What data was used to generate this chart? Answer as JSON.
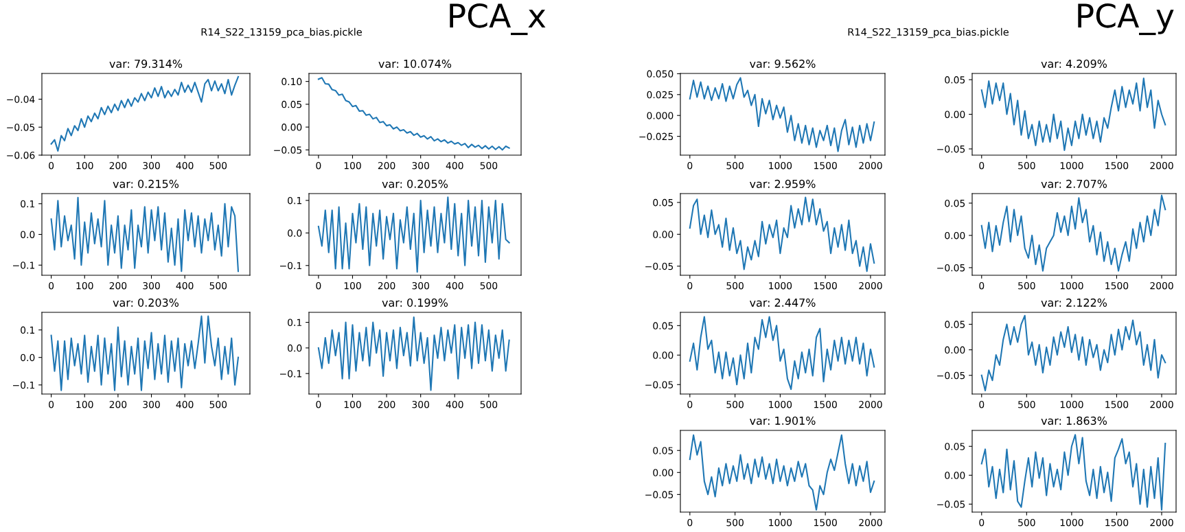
{
  "chart_data": [
    {
      "type": "line",
      "title": "var: 79.314%",
      "annotations": [
        "R14_S22_13159_pca_bias.pickle",
        "PCA_x"
      ],
      "xlim": [
        -28,
        595
      ],
      "ylim": [
        -0.06,
        -0.0308
      ],
      "xticks": [
        0,
        100,
        200,
        300,
        400,
        500
      ],
      "yticks": [
        {
          "value": -0.06,
          "label": "−0.06"
        },
        {
          "value": -0.05,
          "label": "−0.05"
        },
        {
          "value": -0.04,
          "label": "−0.04"
        }
      ],
      "x": [
        0,
        10,
        20,
        30,
        40,
        50,
        60,
        70,
        80,
        90,
        100,
        110,
        120,
        130,
        140,
        150,
        160,
        170,
        180,
        190,
        200,
        210,
        220,
        230,
        240,
        250,
        260,
        270,
        280,
        290,
        300,
        310,
        320,
        330,
        340,
        350,
        360,
        370,
        380,
        390,
        400,
        410,
        420,
        430,
        440,
        450,
        460,
        470,
        480,
        490,
        500,
        510,
        520,
        530,
        540,
        550,
        560
      ],
      "series": [
        {
          "color": "#1f77b4",
          "values": [
            -0.056,
            -0.0545,
            -0.0585,
            -0.053,
            -0.0548,
            -0.0505,
            -0.053,
            -0.0495,
            -0.0512,
            -0.047,
            -0.05,
            -0.046,
            -0.048,
            -0.045,
            -0.047,
            -0.043,
            -0.0455,
            -0.0425,
            -0.0448,
            -0.0418,
            -0.044,
            -0.0405,
            -0.043,
            -0.04,
            -0.0425,
            -0.0395,
            -0.041,
            -0.038,
            -0.0405,
            -0.0375,
            -0.0395,
            -0.036,
            -0.039,
            -0.0355,
            -0.0395,
            -0.037,
            -0.039,
            -0.0365,
            -0.0385,
            -0.034,
            -0.0375,
            -0.035,
            -0.0375,
            -0.034,
            -0.0375,
            -0.041,
            -0.0345,
            -0.033,
            -0.037,
            -0.0335,
            -0.037,
            -0.0345,
            -0.038,
            -0.033,
            -0.0385,
            -0.035,
            -0.032
          ]
        }
      ]
    },
    {
      "type": "line",
      "title": "var: 10.074%",
      "xlim": [
        -28,
        595
      ],
      "ylim": [
        -0.0615,
        0.1175
      ],
      "xticks": [
        0,
        100,
        200,
        300,
        400,
        500
      ],
      "yticks": [
        {
          "value": -0.05,
          "label": "−0.05"
        },
        {
          "value": 0,
          "label": "0.00"
        },
        {
          "value": 0.05,
          "label": "0.05"
        },
        {
          "value": 0.1,
          "label": "0.10"
        }
      ],
      "x": [
        0,
        10,
        20,
        30,
        40,
        50,
        60,
        70,
        80,
        90,
        100,
        110,
        120,
        130,
        140,
        150,
        160,
        170,
        180,
        190,
        200,
        210,
        220,
        230,
        240,
        250,
        260,
        270,
        280,
        290,
        300,
        310,
        320,
        330,
        340,
        350,
        360,
        370,
        380,
        390,
        400,
        410,
        420,
        430,
        440,
        450,
        460,
        470,
        480,
        490,
        500,
        510,
        520,
        530,
        540,
        550,
        560
      ],
      "series": [
        {
          "color": "#1f77b4",
          "values": [
            0.105,
            0.108,
            0.095,
            0.094,
            0.082,
            0.08,
            0.07,
            0.072,
            0.058,
            0.055,
            0.045,
            0.047,
            0.035,
            0.036,
            0.026,
            0.028,
            0.018,
            0.021,
            0.01,
            0.012,
            0.003,
            0.005,
            -0.004,
            0.0,
            -0.008,
            -0.006,
            -0.013,
            -0.01,
            -0.018,
            -0.014,
            -0.022,
            -0.019,
            -0.026,
            -0.021,
            -0.03,
            -0.026,
            -0.032,
            -0.028,
            -0.035,
            -0.031,
            -0.037,
            -0.034,
            -0.04,
            -0.036,
            -0.045,
            -0.038,
            -0.044,
            -0.04,
            -0.047,
            -0.041,
            -0.048,
            -0.042,
            -0.049,
            -0.043,
            -0.05,
            -0.042,
            -0.046
          ]
        }
      ]
    },
    {
      "type": "line",
      "title": "var: 0.215%",
      "xlim": [
        -28,
        595
      ],
      "ylim": [
        -0.133,
        0.133
      ],
      "xticks": [
        0,
        100,
        200,
        300,
        400,
        500
      ],
      "yticks": [
        {
          "value": -0.1,
          "label": "−0.1"
        },
        {
          "value": 0,
          "label": "0.0"
        },
        {
          "value": 0.1,
          "label": "0.1"
        }
      ],
      "x": [
        0,
        10,
        20,
        30,
        40,
        50,
        60,
        70,
        80,
        90,
        100,
        110,
        120,
        130,
        140,
        150,
        160,
        170,
        180,
        190,
        200,
        210,
        220,
        230,
        240,
        250,
        260,
        270,
        280,
        290,
        300,
        310,
        320,
        330,
        340,
        350,
        360,
        370,
        380,
        390,
        400,
        410,
        420,
        430,
        440,
        450,
        460,
        470,
        480,
        490,
        500,
        510,
        520,
        530,
        540,
        550,
        560
      ],
      "series": [
        {
          "color": "#1f77b4",
          "values": [
            0.05,
            -0.05,
            0.11,
            -0.04,
            0.06,
            -0.02,
            0.03,
            -0.08,
            0.12,
            -0.1,
            0.04,
            -0.06,
            0.07,
            -0.03,
            0.05,
            -0.04,
            0.11,
            -0.1,
            0.03,
            -0.06,
            0.06,
            -0.11,
            0.03,
            -0.05,
            0.08,
            -0.11,
            0.03,
            -0.04,
            0.09,
            -0.06,
            0.08,
            -0.02,
            0.09,
            -0.05,
            0.07,
            -0.09,
            0.02,
            -0.1,
            0.05,
            -0.12,
            0.08,
            -0.02,
            0.07,
            -0.04,
            0.06,
            -0.06,
            0.05,
            -0.02,
            0.07,
            -0.05,
            0.03,
            -0.07,
            0.1,
            -0.04,
            0.09,
            0.06,
            -0.12
          ]
        }
      ]
    },
    {
      "type": "line",
      "title": "var: 0.205%",
      "xlim": [
        -28,
        595
      ],
      "ylim": [
        -0.13,
        0.121
      ],
      "xticks": [
        0,
        100,
        200,
        300,
        400,
        500
      ],
      "yticks": [
        {
          "value": -0.1,
          "label": "−0.1"
        },
        {
          "value": 0,
          "label": "0.0"
        },
        {
          "value": 0.1,
          "label": "0.1"
        }
      ],
      "x": [
        0,
        10,
        20,
        30,
        40,
        50,
        60,
        70,
        80,
        90,
        100,
        110,
        120,
        130,
        140,
        150,
        160,
        170,
        180,
        190,
        200,
        210,
        220,
        230,
        240,
        250,
        260,
        270,
        280,
        290,
        300,
        310,
        320,
        330,
        340,
        350,
        360,
        370,
        380,
        390,
        400,
        410,
        420,
        430,
        440,
        450,
        460,
        470,
        480,
        490,
        500,
        510,
        520,
        530,
        540,
        550,
        560
      ],
      "series": [
        {
          "color": "#1f77b4",
          "values": [
            0.02,
            -0.04,
            0.07,
            -0.06,
            0.07,
            -0.11,
            0.08,
            -0.11,
            0.03,
            -0.11,
            0.06,
            -0.03,
            0.09,
            -0.05,
            0.08,
            -0.1,
            0.06,
            -0.04,
            0.07,
            -0.08,
            0.05,
            -0.02,
            0.06,
            -0.11,
            0.04,
            -0.03,
            0.08,
            -0.05,
            0.06,
            -0.12,
            0.1,
            -0.06,
            0.07,
            -0.04,
            0.08,
            -0.06,
            0.06,
            -0.03,
            0.11,
            -0.05,
            0.09,
            -0.07,
            0.06,
            -0.1,
            0.1,
            -0.04,
            0.08,
            -0.07,
            0.1,
            -0.09,
            0.08,
            -0.03,
            0.1,
            -0.08,
            0.09,
            -0.02,
            -0.03
          ]
        }
      ]
    },
    {
      "type": "line",
      "title": "var: 0.203%",
      "xlim": [
        -28,
        595
      ],
      "ylim": [
        -0.133,
        0.164
      ],
      "xticks": [
        0,
        100,
        200,
        300,
        400,
        500
      ],
      "yticks": [
        {
          "value": -0.1,
          "label": "−0.1"
        },
        {
          "value": 0,
          "label": "0.0"
        },
        {
          "value": 0.1,
          "label": "0.1"
        }
      ],
      "x": [
        0,
        10,
        20,
        30,
        40,
        50,
        60,
        70,
        80,
        90,
        100,
        110,
        120,
        130,
        140,
        150,
        160,
        170,
        180,
        190,
        200,
        210,
        220,
        230,
        240,
        250,
        260,
        270,
        280,
        290,
        300,
        310,
        320,
        330,
        340,
        350,
        360,
        370,
        380,
        390,
        400,
        410,
        420,
        430,
        440,
        450,
        460,
        470,
        480,
        490,
        500,
        510,
        520,
        530,
        540,
        550,
        560
      ],
      "series": [
        {
          "color": "#1f77b4",
          "values": [
            0.08,
            -0.05,
            0.06,
            -0.12,
            0.06,
            -0.08,
            0.07,
            -0.03,
            0.05,
            -0.06,
            0.08,
            -0.09,
            0.04,
            -0.05,
            0.08,
            -0.1,
            0.07,
            -0.06,
            0.05,
            -0.12,
            0.11,
            -0.07,
            0.06,
            -0.1,
            0.04,
            -0.06,
            0.07,
            -0.12,
            0.06,
            -0.04,
            0.09,
            -0.08,
            0.05,
            -0.06,
            0.08,
            -0.09,
            0.06,
            -0.05,
            0.07,
            -0.11,
            0.05,
            -0.03,
            0.06,
            -0.04,
            0.05,
            0.15,
            -0.02,
            0.15,
            0.04,
            -0.03,
            0.07,
            -0.08,
            0.04,
            -0.06,
            0.07,
            -0.1,
            0.0
          ]
        }
      ]
    },
    {
      "type": "line",
      "title": "var: 0.199%",
      "xlim": [
        -28,
        595
      ],
      "ylim": [
        -0.18,
        0.139
      ],
      "xticks": [
        0,
        100,
        200,
        300,
        400,
        500
      ],
      "yticks": [
        {
          "value": -0.1,
          "label": "−0.1"
        },
        {
          "value": 0,
          "label": "0.0"
        },
        {
          "value": 0.1,
          "label": "0.1"
        }
      ],
      "x": [
        0,
        10,
        20,
        30,
        40,
        50,
        60,
        70,
        80,
        90,
        100,
        110,
        120,
        130,
        140,
        150,
        160,
        170,
        180,
        190,
        200,
        210,
        220,
        230,
        240,
        250,
        260,
        270,
        280,
        290,
        300,
        310,
        320,
        330,
        340,
        350,
        360,
        370,
        380,
        390,
        400,
        410,
        420,
        430,
        440,
        450,
        460,
        470,
        480,
        490,
        500,
        510,
        520,
        530,
        540,
        550,
        560
      ],
      "series": [
        {
          "color": "#1f77b4",
          "values": [
            0.0,
            -0.08,
            0.04,
            -0.06,
            0.07,
            -0.03,
            0.06,
            -0.12,
            0.1,
            -0.12,
            0.09,
            -0.09,
            0.06,
            -0.05,
            0.08,
            -0.07,
            0.1,
            -0.02,
            0.07,
            -0.11,
            0.06,
            -0.05,
            0.07,
            -0.08,
            0.08,
            -0.03,
            0.06,
            -0.07,
            0.12,
            -0.05,
            0.06,
            -0.06,
            0.04,
            -0.165,
            0.05,
            -0.04,
            0.08,
            -0.05,
            0.07,
            -0.02,
            0.09,
            -0.12,
            0.08,
            -0.04,
            0.09,
            -0.08,
            0.1,
            -0.06,
            0.09,
            -0.05,
            0.07,
            -0.09,
            0.05,
            -0.04,
            0.07,
            -0.09,
            0.03
          ]
        }
      ]
    },
    {
      "type": "line",
      "title": "var: 9.562%",
      "annotations": [
        "R14_S22_13159_pca_bias.pickle",
        "PCA_y"
      ],
      "xlim": [
        -105,
        2160
      ],
      "ylim": [
        -0.0475,
        0.0503
      ],
      "xticks": [
        0,
        500,
        1000,
        1500,
        2000
      ],
      "yticks": [
        {
          "value": -0.025,
          "label": "−0.025"
        },
        {
          "value": 0,
          "label": "0.000"
        },
        {
          "value": 0.025,
          "label": "0.025"
        },
        {
          "value": 0.05,
          "label": "0.050"
        }
      ],
      "x": [
        0,
        40,
        80,
        120,
        160,
        200,
        240,
        280,
        320,
        360,
        400,
        440,
        480,
        520,
        560,
        600,
        640,
        680,
        720,
        760,
        800,
        840,
        880,
        920,
        960,
        1000,
        1040,
        1080,
        1120,
        1160,
        1200,
        1240,
        1280,
        1320,
        1360,
        1400,
        1440,
        1480,
        1520,
        1560,
        1600,
        1640,
        1680,
        1720,
        1760,
        1800,
        1840,
        1880,
        1920,
        1960,
        2000,
        2040
      ],
      "series": [
        {
          "color": "#1f77b4",
          "values": [
            0.02,
            0.042,
            0.022,
            0.04,
            0.02,
            0.035,
            0.018,
            0.033,
            0.02,
            0.038,
            0.017,
            0.035,
            0.02,
            0.037,
            0.045,
            0.022,
            0.03,
            0.012,
            0.025,
            -0.013,
            0.02,
            0.002,
            0.018,
            -0.005,
            0.012,
            -0.003,
            0.01,
            -0.02,
            0.0,
            -0.03,
            -0.01,
            -0.033,
            -0.012,
            -0.035,
            -0.015,
            -0.038,
            -0.018,
            -0.03,
            -0.012,
            -0.036,
            -0.015,
            -0.043,
            -0.018,
            -0.005,
            -0.035,
            -0.014,
            -0.038,
            -0.012,
            -0.033,
            -0.01,
            -0.03,
            -0.008
          ]
        }
      ]
    },
    {
      "type": "line",
      "title": "var: 4.209%",
      "xlim": [
        -105,
        2160
      ],
      "ylim": [
        -0.059,
        0.059
      ],
      "xticks": [
        0,
        500,
        1000,
        1500,
        2000
      ],
      "yticks": [
        {
          "value": -0.05,
          "label": "−0.05"
        },
        {
          "value": 0,
          "label": "0.00"
        },
        {
          "value": 0.05,
          "label": "0.05"
        }
      ],
      "x": [
        0,
        40,
        80,
        120,
        160,
        200,
        240,
        280,
        320,
        360,
        400,
        440,
        480,
        520,
        560,
        600,
        640,
        680,
        720,
        760,
        800,
        840,
        880,
        920,
        960,
        1000,
        1040,
        1080,
        1120,
        1160,
        1200,
        1240,
        1280,
        1320,
        1360,
        1400,
        1440,
        1480,
        1520,
        1560,
        1600,
        1640,
        1680,
        1720,
        1760,
        1800,
        1840,
        1880,
        1920,
        1960,
        2000,
        2040
      ],
      "series": [
        {
          "color": "#1f77b4",
          "values": [
            0.035,
            0.01,
            0.048,
            0.015,
            0.045,
            0.02,
            0.045,
            0.0,
            0.03,
            -0.015,
            0.02,
            -0.03,
            0.005,
            -0.035,
            -0.015,
            -0.045,
            -0.01,
            -0.04,
            -0.015,
            -0.04,
            0.0,
            -0.035,
            -0.01,
            -0.052,
            -0.02,
            -0.045,
            -0.01,
            -0.035,
            0.0,
            -0.03,
            -0.005,
            -0.035,
            -0.01,
            -0.04,
            -0.005,
            -0.02,
            0.01,
            0.035,
            0.005,
            0.04,
            0.01,
            0.035,
            0.015,
            0.045,
            0.005,
            0.052,
            0.01,
            0.035,
            -0.02,
            0.02,
            0.0,
            -0.015
          ]
        }
      ]
    },
    {
      "type": "line",
      "title": "var: 2.959%",
      "xlim": [
        -105,
        2160
      ],
      "ylim": [
        -0.0643,
        0.0639
      ],
      "xticks": [
        0,
        500,
        1000,
        1500,
        2000
      ],
      "yticks": [
        {
          "value": -0.05,
          "label": "−0.05"
        },
        {
          "value": 0,
          "label": "0.00"
        },
        {
          "value": 0.05,
          "label": "0.05"
        }
      ],
      "x": [
        0,
        40,
        80,
        120,
        160,
        200,
        240,
        280,
        320,
        360,
        400,
        440,
        480,
        520,
        560,
        600,
        640,
        680,
        720,
        760,
        800,
        840,
        880,
        920,
        960,
        1000,
        1040,
        1080,
        1120,
        1160,
        1200,
        1240,
        1280,
        1320,
        1360,
        1400,
        1440,
        1480,
        1520,
        1560,
        1600,
        1640,
        1680,
        1720,
        1760,
        1800,
        1840,
        1880,
        1920,
        1960,
        2000,
        2040
      ],
      "series": [
        {
          "color": "#1f77b4",
          "values": [
            0.01,
            0.045,
            0.055,
            0.0,
            0.03,
            -0.005,
            0.038,
            0.0,
            0.015,
            -0.02,
            0.025,
            -0.025,
            0.01,
            -0.03,
            -0.01,
            -0.055,
            -0.02,
            -0.04,
            -0.01,
            -0.035,
            0.02,
            -0.015,
            0.015,
            -0.005,
            0.022,
            -0.03,
            0.01,
            -0.005,
            0.045,
            0.01,
            0.04,
            0.015,
            0.058,
            0.02,
            0.055,
            0.015,
            0.04,
            0.005,
            0.02,
            -0.03,
            0.01,
            -0.02,
            0.015,
            -0.025,
            0.022,
            -0.03,
            -0.01,
            -0.05,
            -0.02,
            -0.058,
            -0.015,
            -0.045
          ]
        }
      ]
    },
    {
      "type": "line",
      "title": "var: 2.707%",
      "xlim": [
        -105,
        2160
      ],
      "ylim": [
        -0.0618,
        0.0648
      ],
      "xticks": [
        0,
        500,
        1000,
        1500,
        2000
      ],
      "yticks": [
        {
          "value": -0.05,
          "label": "−0.05"
        },
        {
          "value": 0,
          "label": "0.00"
        },
        {
          "value": 0.05,
          "label": "0.05"
        }
      ],
      "x": [
        0,
        40,
        80,
        120,
        160,
        200,
        240,
        280,
        320,
        360,
        400,
        440,
        480,
        520,
        560,
        600,
        640,
        680,
        720,
        760,
        800,
        840,
        880,
        920,
        960,
        1000,
        1040,
        1080,
        1120,
        1160,
        1200,
        1240,
        1280,
        1320,
        1360,
        1400,
        1440,
        1480,
        1520,
        1560,
        1600,
        1640,
        1680,
        1720,
        1760,
        1800,
        1840,
        1880,
        1920,
        1960,
        2000,
        2040
      ],
      "series": [
        {
          "color": "#1f77b4",
          "values": [
            0.015,
            -0.02,
            0.02,
            -0.025,
            0.015,
            -0.015,
            0.02,
            0.045,
            -0.01,
            0.04,
            0.0,
            0.03,
            -0.02,
            -0.035,
            0.0,
            -0.045,
            -0.015,
            -0.055,
            -0.02,
            -0.01,
            0.0,
            0.035,
            0.005,
            0.03,
            0.0,
            0.045,
            0.01,
            0.058,
            0.02,
            0.04,
            -0.01,
            0.015,
            -0.03,
            0.005,
            -0.04,
            -0.01,
            -0.045,
            -0.02,
            -0.055,
            -0.03,
            -0.01,
            -0.04,
            0.01,
            -0.02,
            0.02,
            -0.01,
            0.03,
            0.0,
            0.04,
            0.015,
            0.062,
            0.04
          ]
        }
      ]
    },
    {
      "type": "line",
      "title": "var: 2.447%",
      "xlim": [
        -105,
        2160
      ],
      "ylim": [
        -0.066,
        0.0725
      ],
      "xticks": [
        0,
        500,
        1000,
        1500,
        2000
      ],
      "yticks": [
        {
          "value": -0.05,
          "label": "−0.05"
        },
        {
          "value": 0,
          "label": "0.00"
        },
        {
          "value": 0.05,
          "label": "0.05"
        }
      ],
      "x": [
        0,
        40,
        80,
        120,
        160,
        200,
        240,
        280,
        320,
        360,
        400,
        440,
        480,
        520,
        560,
        600,
        640,
        680,
        720,
        760,
        800,
        840,
        880,
        920,
        960,
        1000,
        1040,
        1080,
        1120,
        1160,
        1200,
        1240,
        1280,
        1320,
        1360,
        1400,
        1440,
        1480,
        1520,
        1560,
        1600,
        1640,
        1680,
        1720,
        1760,
        1800,
        1840,
        1880,
        1920,
        1960,
        2000,
        2040
      ],
      "series": [
        {
          "color": "#1f77b4",
          "values": [
            -0.01,
            0.02,
            -0.025,
            0.03,
            0.065,
            0.01,
            0.025,
            -0.03,
            0.005,
            -0.04,
            0.005,
            -0.035,
            -0.005,
            -0.05,
            0.0,
            -0.04,
            0.02,
            -0.03,
            0.03,
            0.01,
            0.06,
            0.03,
            0.065,
            0.025,
            0.05,
            -0.01,
            0.01,
            -0.04,
            -0.058,
            -0.01,
            -0.04,
            0.005,
            -0.03,
            0.01,
            -0.035,
            0.03,
            0.045,
            -0.045,
            0.01,
            -0.025,
            0.025,
            -0.01,
            0.03,
            -0.015,
            0.025,
            -0.01,
            0.03,
            -0.015,
            0.02,
            -0.035,
            0.01,
            -0.02
          ]
        }
      ]
    },
    {
      "type": "line",
      "title": "var: 2.122%",
      "xlim": [
        -105,
        2160
      ],
      "ylim": [
        -0.0866,
        0.0734
      ],
      "xticks": [
        0,
        500,
        1000,
        1500,
        2000
      ],
      "yticks": [
        {
          "value": -0.05,
          "label": "−0.05"
        },
        {
          "value": 0,
          "label": "0.00"
        },
        {
          "value": 0.05,
          "label": "0.05"
        }
      ],
      "x": [
        0,
        40,
        80,
        120,
        160,
        200,
        240,
        280,
        320,
        360,
        400,
        440,
        480,
        520,
        560,
        600,
        640,
        680,
        720,
        760,
        800,
        840,
        880,
        920,
        960,
        1000,
        1040,
        1080,
        1120,
        1160,
        1200,
        1240,
        1280,
        1320,
        1360,
        1400,
        1440,
        1480,
        1520,
        1560,
        1600,
        1640,
        1680,
        1720,
        1760,
        1800,
        1840,
        1880,
        1920,
        1960,
        2000,
        2040
      ],
      "series": [
        {
          "color": "#1f77b4",
          "values": [
            -0.05,
            -0.08,
            -0.04,
            -0.06,
            -0.01,
            -0.03,
            0.02,
            0.05,
            0.01,
            0.045,
            0.015,
            0.05,
            0.067,
            -0.01,
            0.015,
            -0.03,
            0.01,
            -0.045,
            0.005,
            -0.03,
            0.025,
            -0.01,
            0.035,
            0.005,
            0.045,
            -0.005,
            0.03,
            -0.02,
            0.025,
            -0.03,
            0.02,
            -0.015,
            0.01,
            -0.04,
            0.0,
            -0.025,
            0.03,
            -0.01,
            0.04,
            0.0,
            0.045,
            0.02,
            0.058,
            0.01,
            0.035,
            -0.03,
            0.01,
            -0.04,
            0.02,
            -0.055,
            -0.01,
            -0.025
          ]
        }
      ]
    },
    {
      "type": "line",
      "title": "var: 1.901%",
      "xlim": [
        -105,
        2160
      ],
      "ylim": [
        -0.09,
        0.0956
      ],
      "xticks": [
        0,
        500,
        1000,
        1500,
        2000
      ],
      "yticks": [
        {
          "value": -0.05,
          "label": "−0.05"
        },
        {
          "value": 0,
          "label": "0.00"
        },
        {
          "value": 0.05,
          "label": "0.05"
        }
      ],
      "x": [
        0,
        40,
        80,
        120,
        160,
        200,
        240,
        280,
        320,
        360,
        400,
        440,
        480,
        520,
        560,
        600,
        640,
        680,
        720,
        760,
        800,
        840,
        880,
        920,
        960,
        1000,
        1040,
        1080,
        1120,
        1160,
        1200,
        1240,
        1280,
        1320,
        1360,
        1400,
        1440,
        1480,
        1520,
        1560,
        1600,
        1640,
        1680,
        1720,
        1760,
        1800,
        1840,
        1880,
        1920,
        1960,
        2000,
        2040
      ],
      "series": [
        {
          "color": "#1f77b4",
          "values": [
            0.03,
            0.085,
            0.04,
            0.07,
            -0.02,
            -0.05,
            -0.01,
            -0.055,
            0.01,
            -0.03,
            0.02,
            -0.025,
            0.015,
            -0.02,
            0.04,
            -0.015,
            0.02,
            -0.025,
            0.03,
            -0.01,
            0.035,
            -0.015,
            0.02,
            -0.025,
            0.03,
            -0.02,
            0.015,
            -0.03,
            0.01,
            -0.02,
            0.025,
            -0.01,
            0.02,
            -0.03,
            -0.04,
            -0.085,
            -0.03,
            -0.05,
            0.0,
            0.03,
            0.005,
            0.045,
            0.085,
            0.02,
            -0.025,
            0.02,
            -0.03,
            0.015,
            -0.02,
            0.025,
            -0.045,
            -0.02
          ]
        }
      ]
    },
    {
      "type": "line",
      "title": "var: 1.863%",
      "xlim": [
        -105,
        2160
      ],
      "ylim": [
        -0.0638,
        0.0776
      ],
      "xticks": [
        0,
        500,
        1000,
        1500,
        2000
      ],
      "yticks": [
        {
          "value": -0.05,
          "label": "−0.05"
        },
        {
          "value": 0,
          "label": "0.00"
        },
        {
          "value": 0.05,
          "label": "0.05"
        }
      ],
      "x": [
        0,
        40,
        80,
        120,
        160,
        200,
        240,
        280,
        320,
        360,
        400,
        440,
        480,
        520,
        560,
        600,
        640,
        680,
        720,
        760,
        800,
        840,
        880,
        920,
        960,
        1000,
        1040,
        1080,
        1120,
        1160,
        1200,
        1240,
        1280,
        1320,
        1360,
        1400,
        1440,
        1480,
        1520,
        1560,
        1600,
        1640,
        1680,
        1720,
        1760,
        1800,
        1840,
        1880,
        1920,
        1960,
        2000,
        2040
      ],
      "series": [
        {
          "color": "#1f77b4",
          "values": [
            0.02,
            0.045,
            -0.02,
            0.015,
            -0.04,
            0.01,
            -0.03,
            0.045,
            -0.025,
            0.025,
            -0.045,
            -0.055,
            -0.01,
            0.03,
            -0.02,
            0.04,
            -0.005,
            0.03,
            -0.035,
            0.02,
            -0.02,
            0.01,
            -0.025,
            0.04,
            0.0,
            0.05,
            0.07,
            0.02,
            0.065,
            -0.01,
            -0.035,
            0.01,
            -0.04,
            0.015,
            -0.03,
            0.005,
            -0.045,
            0.03,
            0.045,
            0.063,
            0.02,
            0.04,
            -0.02,
            0.02,
            -0.05,
            0.01,
            -0.055,
            0.015,
            -0.04,
            0.03,
            -0.06,
            0.055
          ]
        }
      ]
    }
  ]
}
